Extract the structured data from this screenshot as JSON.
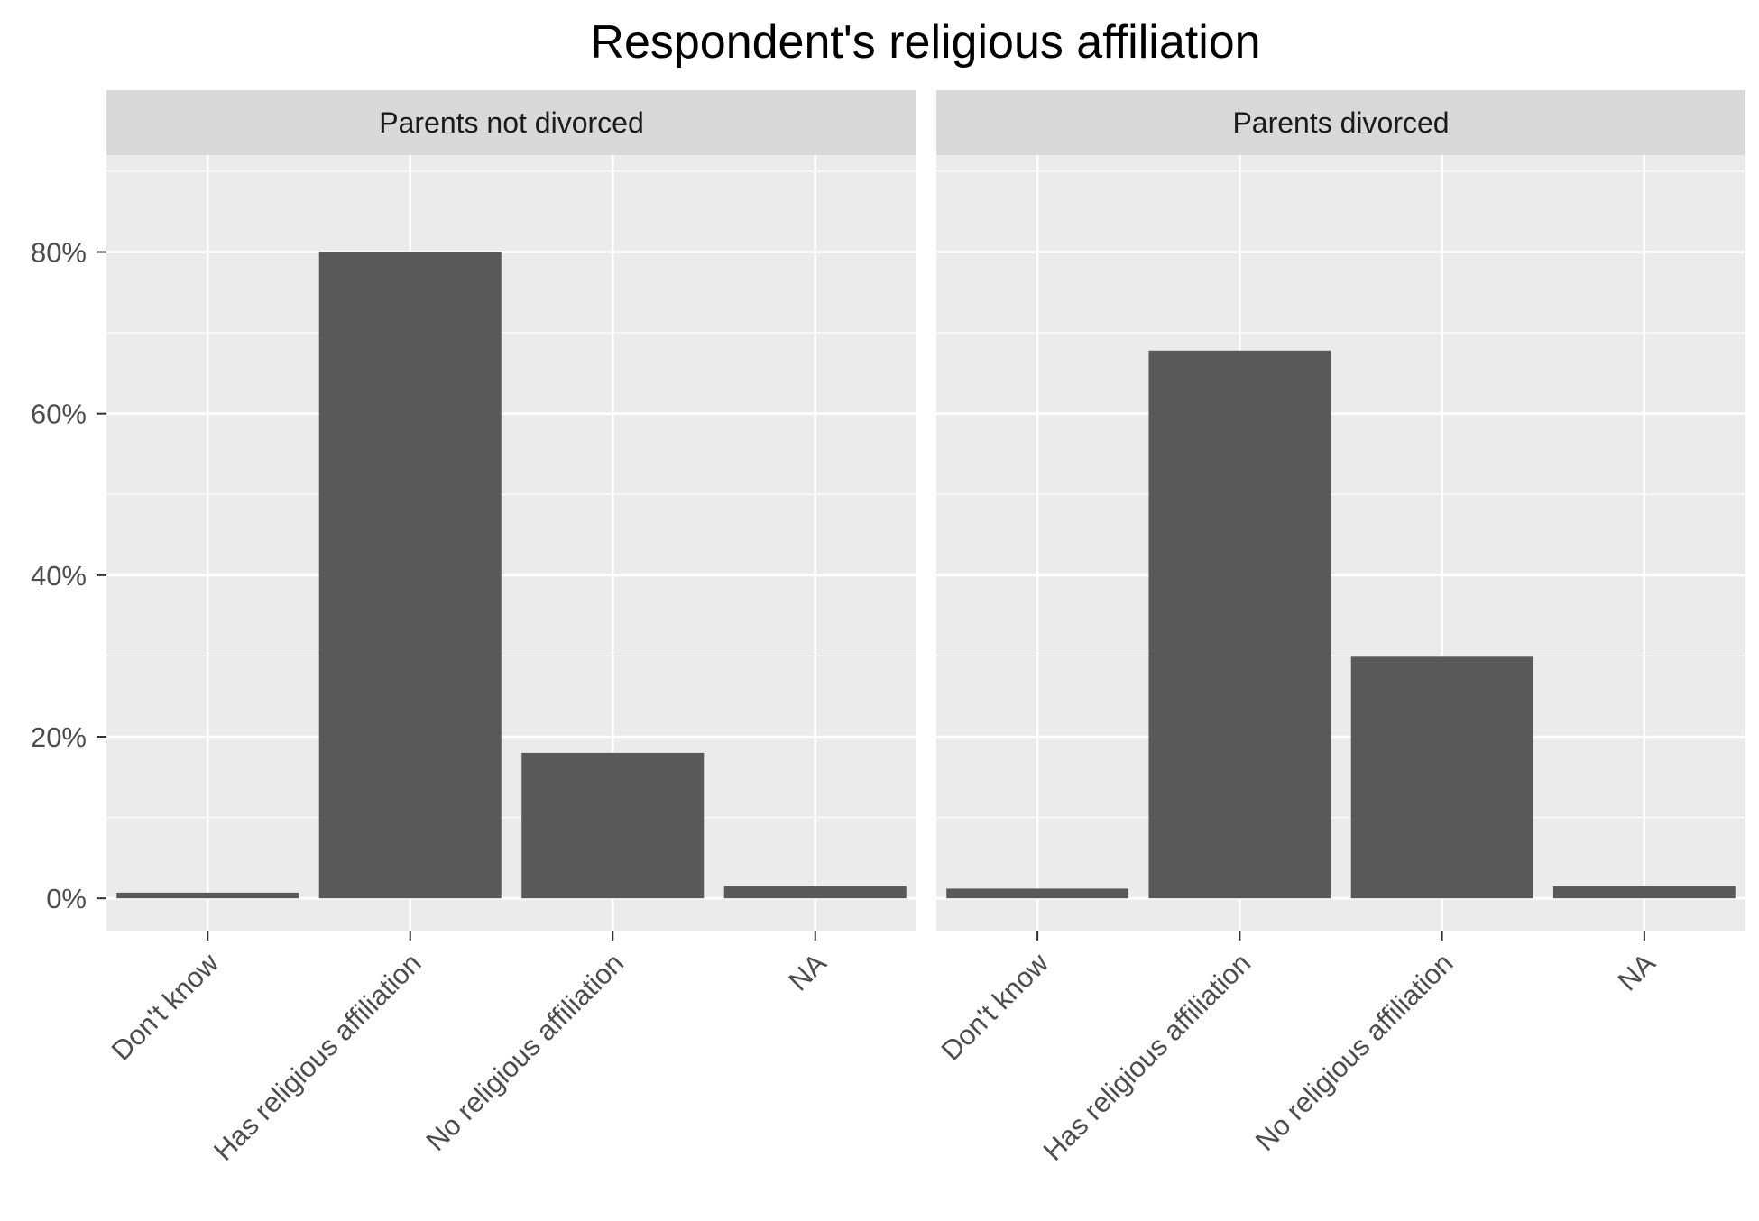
{
  "chart_data": {
    "type": "bar",
    "title": "Respondent's religious affiliation",
    "xlabel": "",
    "ylabel": "",
    "categories": [
      "Don't know",
      "Has religious affiliation",
      "No religious affiliation",
      "NA"
    ],
    "yticks": [
      "0%",
      "20%",
      "40%",
      "60%",
      "80%"
    ],
    "ytick_values": [
      0,
      20,
      40,
      60,
      80
    ],
    "ylim": [
      -4,
      92
    ],
    "grid": true,
    "facets": [
      {
        "label": "Parents not divorced",
        "values": [
          0.7,
          80.0,
          18.0,
          1.5
        ]
      },
      {
        "label": "Parents divorced",
        "values": [
          1.2,
          67.8,
          29.9,
          1.5
        ]
      }
    ],
    "colors": {
      "bar": "#595959",
      "panel": "#ebebeb",
      "strip": "#d9d9d9",
      "grid": "#ffffff",
      "axis_text": "#4d4d4d",
      "strip_text": "#1a1a1a",
      "title": "#000000"
    }
  }
}
